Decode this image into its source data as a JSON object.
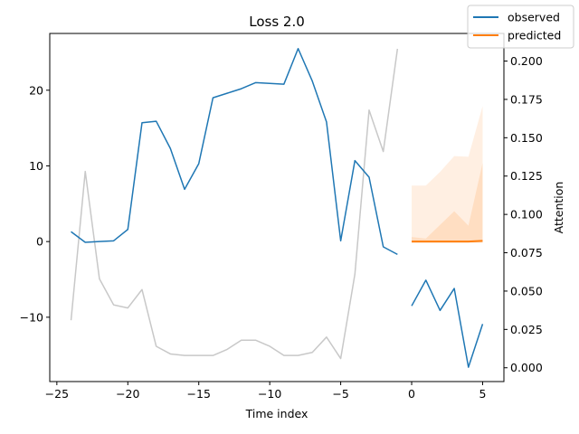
{
  "chart_data": {
    "type": "line",
    "title": "Loss 2.0",
    "xlabel": "Time index",
    "ylabel_left": "",
    "ylabel_right": "Attention",
    "xlim": [
      -25.5,
      6.5
    ],
    "ylim_left": [
      -18.5,
      27.5
    ],
    "ylim_right": [
      -0.009,
      0.218
    ],
    "x_ticks": [
      -25,
      -20,
      -15,
      -10,
      -5,
      0,
      5
    ],
    "x_tick_labels": [
      "−25",
      "−20",
      "−15",
      "−10",
      "−5",
      "0",
      "5"
    ],
    "y_left_ticks": [
      -10,
      0,
      10,
      20
    ],
    "y_left_tick_labels": [
      "−10",
      "0",
      "10",
      "20"
    ],
    "y_right_ticks": [
      0.0,
      0.025,
      0.05,
      0.075,
      0.1,
      0.125,
      0.15,
      0.175,
      0.2
    ],
    "y_right_tick_labels": [
      "0.000",
      "0.025",
      "0.050",
      "0.075",
      "0.100",
      "0.125",
      "0.150",
      "0.175",
      "0.200"
    ],
    "legend": {
      "placement": "top-right",
      "entries": [
        "observed",
        "predicted"
      ]
    },
    "colors": {
      "observed": "#1f77b4",
      "predicted": "#ff7f0e",
      "attention": "#c8c8c8",
      "band": "#ff7f0e"
    },
    "series": [
      {
        "name": "observed",
        "axis": "left",
        "x": [
          -24,
          -23,
          -22,
          -21,
          -20,
          -19,
          -18,
          -17,
          -16,
          -15,
          -14,
          -13,
          -12,
          -11,
          -10,
          -9,
          -8,
          -7,
          -6,
          -5,
          -4,
          -3,
          -2,
          -1
        ],
        "values": [
          1.3,
          -0.1,
          0.0,
          0.1,
          1.6,
          15.7,
          15.9,
          12.3,
          6.9,
          10.3,
          19.0,
          19.6,
          20.2,
          21.0,
          20.9,
          20.8,
          25.5,
          21.2,
          15.8,
          0.1,
          10.7,
          8.5,
          -0.7,
          -1.7
        ]
      },
      {
        "name": "observed",
        "axis": "left",
        "x": [
          0,
          1,
          2,
          3,
          4,
          5
        ],
        "values": [
          -8.5,
          -5.1,
          -9.1,
          -6.2,
          -16.6,
          -10.9
        ]
      },
      {
        "name": "predicted",
        "axis": "left",
        "x": [
          0,
          1,
          2,
          3,
          4,
          5
        ],
        "values": [
          0.0,
          0.0,
          0.0,
          0.0,
          0.0,
          0.1
        ]
      },
      {
        "name": "",
        "axis": "right",
        "x": [
          -24,
          -23,
          -22,
          -21,
          -20,
          -19,
          -18,
          -17,
          -16,
          -15,
          -14,
          -13,
          -12,
          -11,
          -10,
          -9,
          -8,
          -7,
          -6,
          -5,
          -4,
          -3,
          -2,
          -1
        ],
        "values": [
          0.031,
          0.128,
          0.058,
          0.041,
          0.039,
          0.051,
          0.014,
          0.009,
          0.008,
          0.008,
          0.008,
          0.012,
          0.018,
          0.018,
          0.014,
          0.008,
          0.008,
          0.01,
          0.02,
          0.006,
          0.061,
          0.168,
          0.141,
          0.208
        ]
      }
    ],
    "bands": [
      {
        "axis": "left",
        "x": [
          0,
          1,
          2,
          3,
          4,
          5
        ],
        "lower": [
          -0.2,
          -0.2,
          -0.2,
          -0.2,
          -0.2,
          -0.2
        ],
        "upper": [
          7.4,
          7.4,
          9.2,
          11.3,
          11.2,
          17.9
        ]
      },
      {
        "axis": "left",
        "x": [
          0,
          1,
          2,
          3,
          4,
          5
        ],
        "lower": [
          -0.1,
          -0.1,
          -0.1,
          -0.1,
          -0.1,
          -0.1
        ],
        "upper": [
          0.6,
          0.4,
          2.2,
          4.0,
          2.1,
          10.4
        ]
      }
    ]
  }
}
